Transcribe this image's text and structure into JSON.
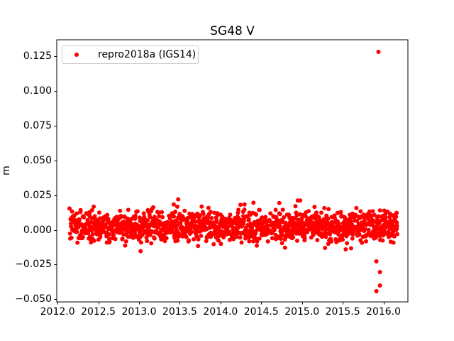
{
  "figure": {
    "background": "#ffffff",
    "text_color": "#000000",
    "frame_color": "#000000"
  },
  "chart_data": {
    "type": "scatter",
    "title": "SG48 V",
    "xlabel": "",
    "ylabel": "m",
    "grid": false,
    "legend": {
      "position": "upper-left",
      "entries": [
        "repro2018a (IGS14)"
      ],
      "border_color": "#cccccc"
    },
    "marker": {
      "shape": "circle",
      "color": "#ff0000",
      "radius_px": 3
    },
    "axes": {
      "xlim": [
        2011.99,
        2016.3
      ],
      "ylim": [
        -0.0519,
        0.1368
      ],
      "x_ticks": [
        2012.0,
        2012.5,
        2013.0,
        2013.5,
        2014.0,
        2014.5,
        2015.0,
        2015.5,
        2016.0
      ],
      "x_tick_labels": [
        "2012.0",
        "2012.5",
        "2013.0",
        "2013.5",
        "2014.0",
        "2014.5",
        "2015.0",
        "2015.5",
        "2016.0"
      ],
      "y_ticks": [
        0.125,
        0.1,
        0.075,
        0.05,
        0.025,
        0.0,
        -0.025,
        -0.05
      ],
      "y_tick_labels": [
        "0.125",
        "0.100",
        "0.075",
        "0.050",
        "0.025",
        "0.000",
        "−0.025",
        "−0.050"
      ]
    },
    "series": [
      {
        "name": "repro2018a (IGS14)",
        "description": "dense daily time-series band of red dots centered near zero",
        "band": {
          "x_start": 2012.15,
          "x_end": 2016.17,
          "n": 1380,
          "y_mean": 0.0025,
          "y_std": 0.0055,
          "y_clip_low": -0.018,
          "y_clip_high": 0.0235,
          "seed": 7
        },
        "outliers": [
          [
            2015.939,
            0.1281
          ],
          [
            2015.913,
            -0.0227
          ],
          [
            2015.957,
            -0.0304
          ],
          [
            2015.957,
            -0.0401
          ],
          [
            2015.913,
            -0.0442
          ]
        ]
      }
    ]
  }
}
